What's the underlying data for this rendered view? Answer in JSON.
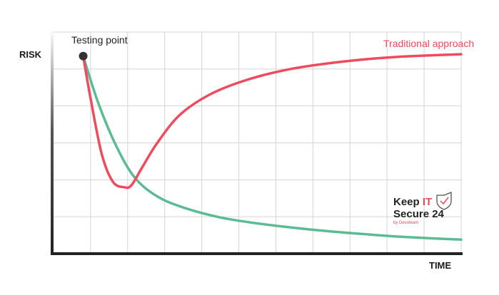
{
  "colors": {
    "traditional": "#ee4b5e",
    "alternative": "#5dbb93",
    "grid": "#d4d4d4",
    "axis": "#222222",
    "brand_accent": "#e84a5f"
  },
  "logo": {
    "line1_a": "Keep ",
    "line1_b": "IT",
    "line2": "Secure 24",
    "byline": "by Devoteam",
    "icon": "shield-check-icon"
  },
  "chart_data": {
    "type": "line",
    "xlabel": "TIME",
    "ylabel": "RISK",
    "xlim": [
      0,
      11
    ],
    "ylim": [
      0,
      6
    ],
    "grid": true,
    "annotations": [
      {
        "text": "Testing point",
        "x": 0.8,
        "y": 5.35
      },
      {
        "text": "Traditional approach",
        "series": "traditional"
      }
    ],
    "series": [
      {
        "key": "traditional",
        "name": "Traditional approach",
        "color": "#ee4b5e",
        "x": [
          0.8,
          1.0,
          1.3,
          1.6,
          1.9,
          2.1,
          2.4,
          2.8,
          3.4,
          4.2,
          5.2,
          6.4,
          7.8,
          9.3,
          11.0
        ],
        "y": [
          5.35,
          4.2,
          2.7,
          1.95,
          1.8,
          1.85,
          2.35,
          3.0,
          3.75,
          4.3,
          4.7,
          5.0,
          5.2,
          5.33,
          5.4
        ]
      },
      {
        "key": "alternative",
        "color": "#5dbb93",
        "x": [
          0.8,
          1.2,
          1.7,
          2.2,
          2.8,
          3.5,
          4.5,
          5.5,
          6.5,
          7.5,
          8.5,
          9.5,
          11.0
        ],
        "y": [
          5.35,
          4.1,
          2.9,
          2.05,
          1.55,
          1.25,
          0.98,
          0.82,
          0.7,
          0.6,
          0.52,
          0.45,
          0.38
        ]
      }
    ]
  }
}
